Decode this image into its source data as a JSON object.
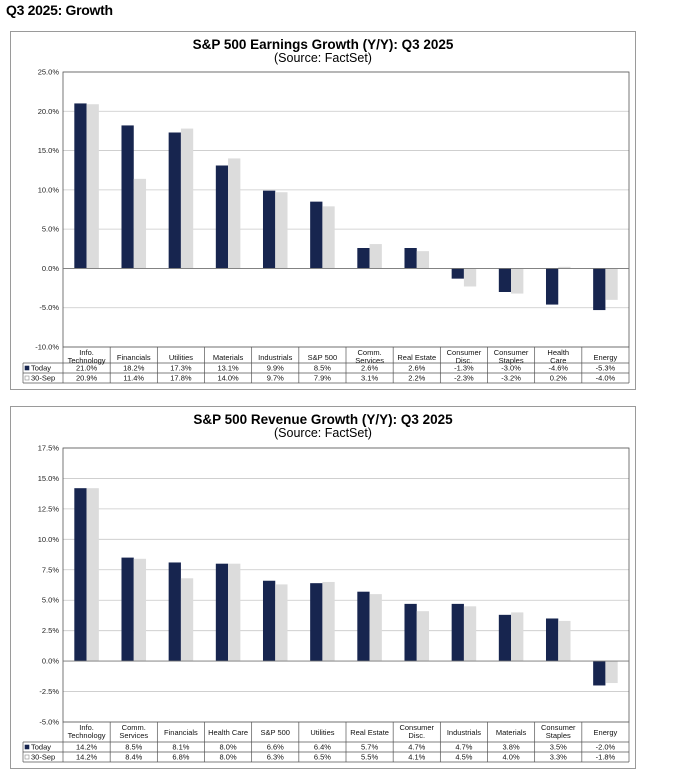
{
  "page": {
    "heading": "Q3 2025: Growth"
  },
  "colors": {
    "today": "#17254f",
    "prior": "#dcdcdc",
    "grid": "#c8c8c8",
    "axis": "#555555"
  },
  "chart_data": [
    {
      "id": "earnings",
      "type": "bar",
      "title": "S&P 500 Earnings Growth (Y/Y): Q3 2025",
      "subtitle": "(Source: FactSet)",
      "categories": [
        [
          "Info.",
          "Technology"
        ],
        [
          "Financials"
        ],
        [
          "Utilities"
        ],
        [
          "Materials"
        ],
        [
          "Industrials"
        ],
        [
          "S&P 500"
        ],
        [
          "Comm.",
          "Services"
        ],
        [
          "Real Estate"
        ],
        [
          "Consumer",
          "Disc."
        ],
        [
          "Consumer",
          "Staples"
        ],
        [
          "Health",
          "Care"
        ],
        [
          "Energy"
        ]
      ],
      "series": [
        {
          "name": "Today",
          "values": [
            21.0,
            18.2,
            17.3,
            13.1,
            9.9,
            8.5,
            2.6,
            2.6,
            -1.3,
            -3.0,
            -4.6,
            -5.3
          ],
          "labels": [
            "21.0%",
            "18.2%",
            "17.3%",
            "13.1%",
            "9.9%",
            "8.5%",
            "2.6%",
            "2.6%",
            "-1.3%",
            "-3.0%",
            "-4.6%",
            "-5.3%"
          ]
        },
        {
          "name": "30-Sep",
          "values": [
            20.9,
            11.4,
            17.8,
            14.0,
            9.7,
            7.9,
            3.1,
            2.2,
            -2.3,
            -3.2,
            0.2,
            -4.0
          ],
          "labels": [
            "20.9%",
            "11.4%",
            "17.8%",
            "14.0%",
            "9.7%",
            "7.9%",
            "3.1%",
            "2.2%",
            "-2.3%",
            "-3.2%",
            "0.2%",
            "-4.0%"
          ]
        }
      ],
      "ylim": [
        -10,
        25
      ],
      "yticks": [
        -10,
        -5,
        0,
        5,
        10,
        15,
        20,
        25
      ],
      "ytick_labels": [
        "-10.0%",
        "-5.0%",
        "0.0%",
        "5.0%",
        "10.0%",
        "15.0%",
        "20.0%",
        "25.0%"
      ],
      "legend": [
        "Today",
        "30-Sep"
      ],
      "grid": true
    },
    {
      "id": "revenue",
      "type": "bar",
      "title": "S&P 500 Revenue Growth (Y/Y): Q3 2025",
      "subtitle": "(Source: FactSet)",
      "categories": [
        [
          "Info.",
          "Technology"
        ],
        [
          "Comm.",
          "Services"
        ],
        [
          "Financials"
        ],
        [
          "Health Care"
        ],
        [
          "S&P 500"
        ],
        [
          "Utilities"
        ],
        [
          "Real Estate"
        ],
        [
          "Consumer",
          "Disc."
        ],
        [
          "Industrials"
        ],
        [
          "Materials"
        ],
        [
          "Consumer",
          "Staples"
        ],
        [
          "Energy"
        ]
      ],
      "series": [
        {
          "name": "Today",
          "values": [
            14.2,
            8.5,
            8.1,
            8.0,
            6.6,
            6.4,
            5.7,
            4.7,
            4.7,
            3.8,
            3.5,
            -2.0
          ],
          "labels": [
            "14.2%",
            "8.5%",
            "8.1%",
            "8.0%",
            "6.6%",
            "6.4%",
            "5.7%",
            "4.7%",
            "4.7%",
            "3.8%",
            "3.5%",
            "-2.0%"
          ]
        },
        {
          "name": "30-Sep",
          "values": [
            14.2,
            8.4,
            6.8,
            8.0,
            6.3,
            6.5,
            5.5,
            4.1,
            4.5,
            4.0,
            3.3,
            -1.8
          ],
          "labels": [
            "14.2%",
            "8.4%",
            "6.8%",
            "8.0%",
            "6.3%",
            "6.5%",
            "5.5%",
            "4.1%",
            "4.5%",
            "4.0%",
            "3.3%",
            "-1.8%"
          ]
        }
      ],
      "ylim": [
        -5,
        17.5
      ],
      "yticks": [
        -5,
        -2.5,
        0,
        2.5,
        5,
        7.5,
        10,
        12.5,
        15,
        17.5
      ],
      "ytick_labels": [
        "-5.0%",
        "-2.5%",
        "0.0%",
        "2.5%",
        "5.0%",
        "7.5%",
        "10.0%",
        "12.5%",
        "15.0%",
        "17.5%"
      ],
      "legend": [
        "Today",
        "30-Sep"
      ],
      "grid": true
    }
  ]
}
